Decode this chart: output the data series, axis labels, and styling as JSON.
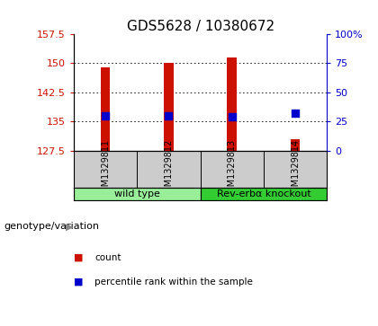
{
  "title": "GDS5628 / 10380672",
  "samples": [
    "GSM1329811",
    "GSM1329812",
    "GSM1329813",
    "GSM1329814"
  ],
  "count_values": [
    149.0,
    150.1,
    151.6,
    130.5
  ],
  "percentile_values": [
    136.5,
    136.5,
    136.3,
    137.2
  ],
  "ylim_left": [
    127.5,
    157.5
  ],
  "ylim_right": [
    0,
    100
  ],
  "yticks_left": [
    127.5,
    135.0,
    142.5,
    150.0,
    157.5
  ],
  "yticks_right": [
    0,
    25,
    50,
    75,
    100
  ],
  "bar_color": "#cc1100",
  "square_color": "#0000cc",
  "background_color": "#ffffff",
  "bar_width": 0.15,
  "groups": [
    {
      "label": "wild type",
      "samples": [
        0,
        1
      ],
      "color": "#99ee99"
    },
    {
      "label": "Rev-erbα knockout",
      "samples": [
        2,
        3
      ],
      "color": "#33cc33"
    }
  ],
  "genotype_label": "genotype/variation",
  "legend_items": [
    {
      "label": "count",
      "color": "#cc1100"
    },
    {
      "label": "percentile rank within the sample",
      "color": "#0000cc"
    }
  ],
  "title_fontsize": 11,
  "tick_fontsize": 8,
  "sample_fontsize": 7,
  "group_fontsize": 8,
  "legend_fontsize": 7.5,
  "label_color": "#cccccc",
  "group_bg": "#cccccc"
}
